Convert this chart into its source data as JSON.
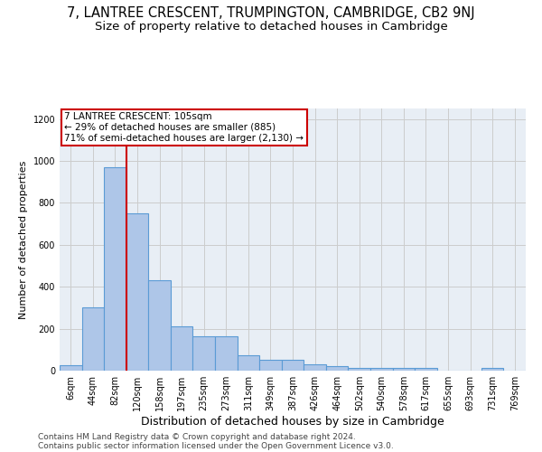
{
  "title": "7, LANTREE CRESCENT, TRUMPINGTON, CAMBRIDGE, CB2 9NJ",
  "subtitle": "Size of property relative to detached houses in Cambridge",
  "xlabel": "Distribution of detached houses by size in Cambridge",
  "ylabel": "Number of detached properties",
  "footer_line1": "Contains HM Land Registry data © Crown copyright and database right 2024.",
  "footer_line2": "Contains public sector information licensed under the Open Government Licence v3.0.",
  "bar_labels": [
    "6sqm",
    "44sqm",
    "82sqm",
    "120sqm",
    "158sqm",
    "197sqm",
    "235sqm",
    "273sqm",
    "311sqm",
    "349sqm",
    "387sqm",
    "426sqm",
    "464sqm",
    "502sqm",
    "540sqm",
    "578sqm",
    "617sqm",
    "655sqm",
    "693sqm",
    "731sqm",
    "769sqm"
  ],
  "bar_values": [
    25,
    300,
    970,
    750,
    430,
    210,
    165,
    165,
    75,
    50,
    50,
    32,
    20,
    12,
    12,
    12,
    12,
    0,
    0,
    14,
    0
  ],
  "bar_color": "#aec6e8",
  "bar_edgecolor": "#5b9bd5",
  "bar_linewidth": 0.8,
  "highlight_index": 2,
  "highlight_color": "#cc0000",
  "highlight_linewidth": 1.5,
  "annotation_text": "7 LANTREE CRESCENT: 105sqm\n← 29% of detached houses are smaller (885)\n71% of semi-detached houses are larger (2,130) →",
  "annotation_box_color": "#cc0000",
  "annotation_box_facecolor": "white",
  "ylim": [
    0,
    1250
  ],
  "yticks": [
    0,
    200,
    400,
    600,
    800,
    1000,
    1200
  ],
  "grid_color": "#cccccc",
  "bg_color": "#e8eef5",
  "fig_bg": "white",
  "title_fontsize": 10.5,
  "subtitle_fontsize": 9.5,
  "xlabel_fontsize": 9,
  "ylabel_fontsize": 8,
  "tick_fontsize": 7,
  "footer_fontsize": 6.5,
  "annotation_fontsize": 7.5
}
